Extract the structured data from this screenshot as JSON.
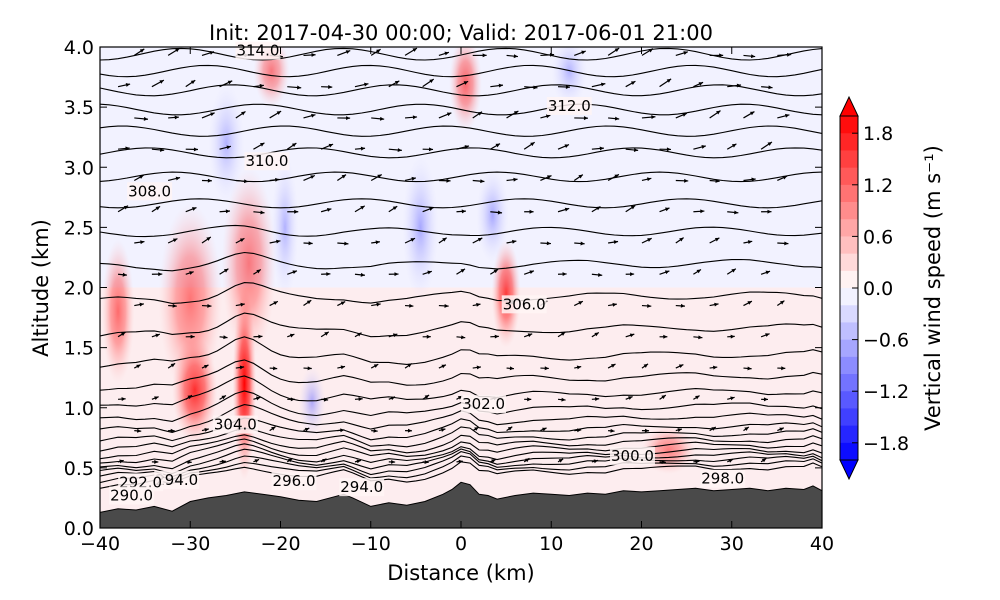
{
  "chart_data": {
    "type": "heatmap",
    "title": "Init: 2017-04-30 00:00; Valid: 2017-06-01 21:00",
    "xlabel": "Distance (km)",
    "ylabel": "Altitude (km)",
    "xlim": [
      -40,
      40
    ],
    "ylim": [
      0.0,
      4.0
    ],
    "x_ticks": [
      "−40",
      "−30",
      "−20",
      "−10",
      "0",
      "10",
      "20",
      "30",
      "40"
    ],
    "x_tick_values": [
      -40,
      -30,
      -20,
      -10,
      0,
      10,
      20,
      30,
      40
    ],
    "y_ticks": [
      "0.0",
      "0.5",
      "1.0",
      "1.5",
      "2.0",
      "2.5",
      "3.0",
      "3.5",
      "4.0"
    ],
    "y_tick_values": [
      0.0,
      0.5,
      1.0,
      1.5,
      2.0,
      2.5,
      3.0,
      3.5,
      4.0
    ],
    "colorbar": {
      "label": "Vertical wind speed (m s⁻¹)",
      "range": [
        -2.0,
        2.0
      ],
      "ticks": [
        "1.8",
        "1.2",
        "0.6",
        "0.0",
        "−0.6",
        "−1.2",
        "−1.8"
      ],
      "tick_values": [
        1.8,
        1.2,
        0.6,
        0.0,
        -0.6,
        -1.2,
        -1.8
      ],
      "colormap": "bwr",
      "extend": "both"
    },
    "theta_contour_labels": [
      {
        "text": "314.0",
        "x": -22.5,
        "y": 3.97
      },
      {
        "text": "312.0",
        "x": 12.0,
        "y": 3.51
      },
      {
        "text": "310.0",
        "x": -21.5,
        "y": 3.05
      },
      {
        "text": "308.0",
        "x": -34.5,
        "y": 2.8
      },
      {
        "text": "306.0",
        "x": 7.0,
        "y": 1.86
      },
      {
        "text": "304.0",
        "x": -25.0,
        "y": 0.86
      },
      {
        "text": "302.0",
        "x": 2.5,
        "y": 1.03
      },
      {
        "text": "300.0",
        "x": 19.0,
        "y": 0.6
      },
      {
        "text": "298.0",
        "x": 29.0,
        "y": 0.41
      },
      {
        "text": "296.0",
        "x": -18.5,
        "y": 0.39
      },
      {
        "text": "294.0",
        "x": -11.0,
        "y": 0.34
      },
      {
        "text": "294.0",
        "x": -31.5,
        "y": 0.4
      },
      {
        "text": "292.0",
        "x": -35.5,
        "y": 0.38
      },
      {
        "text": "290.0",
        "x": -36.5,
        "y": 0.27
      }
    ],
    "upward_motion_regions": [
      {
        "x": -24.0,
        "y": 1.2,
        "dx": 1.3,
        "dy": 0.8,
        "w": 2.0
      },
      {
        "x": -29.5,
        "y": 1.15,
        "dx": 2.5,
        "dy": 0.45,
        "w": 1.2
      },
      {
        "x": -30.0,
        "y": 1.9,
        "dx": 3.5,
        "dy": 0.8,
        "w": 0.4
      },
      {
        "x": -23.5,
        "y": 2.2,
        "dx": 3.0,
        "dy": 0.8,
        "w": 0.4
      },
      {
        "x": -38.0,
        "y": 1.8,
        "dx": 1.8,
        "dy": 0.6,
        "w": 0.5
      },
      {
        "x": 5.0,
        "y": 1.95,
        "dx": 1.6,
        "dy": 0.45,
        "w": 1.0
      },
      {
        "x": 0.5,
        "y": 3.7,
        "dx": 1.8,
        "dy": 0.4,
        "w": 0.6
      },
      {
        "x": -21.0,
        "y": 3.8,
        "dx": 2.0,
        "dy": 0.3,
        "w": 0.4
      },
      {
        "x": 23.0,
        "y": 0.65,
        "dx": 3.0,
        "dy": 0.2,
        "w": 0.3
      }
    ],
    "downward_motion_regions": [
      {
        "x": -26.0,
        "y": 3.2,
        "dx": 2.0,
        "dy": 0.5,
        "w": -0.3
      },
      {
        "x": -19.5,
        "y": 2.5,
        "dx": 1.5,
        "dy": 0.6,
        "w": -0.3
      },
      {
        "x": -4.5,
        "y": 2.5,
        "dx": 2.0,
        "dy": 0.6,
        "w": -0.5
      },
      {
        "x": 3.5,
        "y": 2.6,
        "dx": 1.8,
        "dy": 0.4,
        "w": -0.5
      },
      {
        "x": -16.5,
        "y": 1.05,
        "dx": 1.5,
        "dy": 0.3,
        "w": -0.5
      },
      {
        "x": 12.0,
        "y": 3.8,
        "dx": 2.0,
        "dy": 0.3,
        "w": -0.3
      }
    ],
    "terrain": {
      "x": [
        -40,
        -38,
        -36,
        -34,
        -32,
        -30,
        -28,
        -26,
        -24,
        -22,
        -20,
        -18,
        -16,
        -14,
        -13,
        -12,
        -10,
        -8,
        -6,
        -4,
        -2,
        -1,
        0,
        1,
        2,
        3,
        4,
        6,
        8,
        10,
        12,
        14,
        16,
        18,
        20,
        22,
        24,
        26,
        28,
        30,
        32,
        34,
        36,
        38,
        39,
        40
      ],
      "y": [
        0.13,
        0.16,
        0.15,
        0.18,
        0.14,
        0.22,
        0.25,
        0.27,
        0.3,
        0.28,
        0.26,
        0.23,
        0.22,
        0.26,
        0.28,
        0.25,
        0.18,
        0.21,
        0.19,
        0.22,
        0.28,
        0.32,
        0.38,
        0.36,
        0.28,
        0.27,
        0.24,
        0.27,
        0.29,
        0.28,
        0.27,
        0.29,
        0.28,
        0.31,
        0.3,
        0.31,
        0.32,
        0.33,
        0.31,
        0.32,
        0.33,
        0.31,
        0.33,
        0.32,
        0.35,
        0.31
      ]
    }
  }
}
